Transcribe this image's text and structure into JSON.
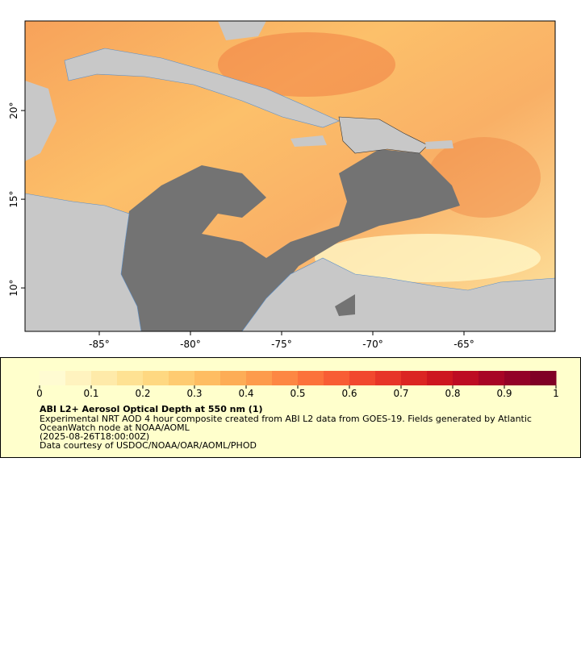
{
  "map": {
    "lonlim": [
      -89.07,
      -60.0
    ],
    "latlim": [
      7.55,
      25.05
    ],
    "lonticks": [
      {
        "value": -85,
        "label": "-85°"
      },
      {
        "value": -80,
        "label": "-80°"
      },
      {
        "value": -75,
        "label": "-75°"
      },
      {
        "value": -70,
        "label": "-70°"
      },
      {
        "value": -65,
        "label": "-65°"
      }
    ],
    "latticks": [
      {
        "value": 10,
        "label": "10°"
      },
      {
        "value": 15,
        "label": "15°"
      },
      {
        "value": 20,
        "label": "20°"
      }
    ]
  },
  "legend": {
    "range": [
      0,
      1
    ],
    "ticks": [
      0,
      0.1,
      0.2,
      0.3,
      0.4,
      0.5,
      0.6,
      0.7,
      0.8,
      0.9,
      1
    ],
    "colors": [
      "#fffbd2",
      "#fff3bf",
      "#feeaa9",
      "#fee293",
      "#fed881",
      "#fecb71",
      "#febd62",
      "#fdad56",
      "#fd9b4c",
      "#fd8743",
      "#fc723b",
      "#f85d34",
      "#f1482e",
      "#e73528",
      "#db2522",
      "#cd161f",
      "#bd0c23",
      "#a80526",
      "#930227",
      "#800026"
    ],
    "title": "ABI L2+ Aerosol Optical Depth at 550 nm (1)",
    "lines": [
      "Experimental NRT AOD 4 hour composite created from ABI L2 data from GOES-19. Fields generated by Atlantic",
      "OceanWatch node at NOAA/AOML",
      "(2025-08-26T18:00:00Z)",
      "Data courtesy of USDOC/NOAA/OAR/AOML/PHOD"
    ]
  }
}
